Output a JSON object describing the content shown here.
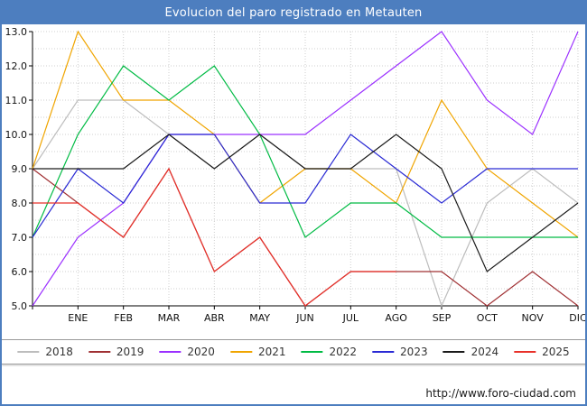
{
  "window": {
    "title": "Evolucion del paro registrado en Metauten"
  },
  "footer": {
    "link": "http://www.foro-ciudad.com"
  },
  "colors": {
    "titlebar": "#4d7ebf",
    "frame_border": "#4d7ebf",
    "grid": "#cfcfcf",
    "axis": "#000000",
    "tick_label": "#111111"
  },
  "chart_data": {
    "type": "line",
    "title": "Evolucion del paro registrado en Metauten",
    "xlabel": "",
    "ylabel": "",
    "ylim": [
      5,
      13
    ],
    "ytick_step": 1,
    "ytick_minor_step": 0.5,
    "grid": true,
    "legend_position": "bottom",
    "categories": [
      "",
      "ENE",
      "FEB",
      "MAR",
      "ABR",
      "MAY",
      "JUN",
      "JUL",
      "AGO",
      "SEP",
      "OCT",
      "NOV",
      "DIC"
    ],
    "series": [
      {
        "name": "2018",
        "color": "#bdbdbd",
        "values": [
          9,
          11,
          11,
          10,
          9,
          10,
          9,
          9,
          9,
          5,
          8,
          9,
          8
        ]
      },
      {
        "name": "2019",
        "color": "#a03033",
        "values": [
          9,
          8,
          7,
          9,
          6,
          7,
          5,
          6,
          6,
          6,
          5,
          6,
          5
        ]
      },
      {
        "name": "2020",
        "color": "#9b30ff",
        "values": [
          5,
          7,
          8,
          10,
          10,
          10,
          10,
          11,
          12,
          13,
          11,
          10,
          13
        ]
      },
      {
        "name": "2021",
        "color": "#f0a500",
        "values": [
          9,
          13,
          11,
          11,
          10,
          8,
          9,
          9,
          8,
          11,
          9,
          8,
          7
        ]
      },
      {
        "name": "2022",
        "color": "#00bb44",
        "values": [
          7,
          10,
          12,
          11,
          12,
          10,
          7,
          8,
          8,
          7,
          7,
          7,
          7
        ]
      },
      {
        "name": "2023",
        "color": "#2a2ad4",
        "values": [
          7,
          9,
          8,
          10,
          10,
          8,
          8,
          10,
          9,
          8,
          9,
          9,
          9
        ]
      },
      {
        "name": "2024",
        "color": "#1a1a1a",
        "values": [
          9,
          9,
          9,
          10,
          9,
          10,
          9,
          9,
          10,
          9,
          6,
          7,
          8
        ]
      },
      {
        "name": "2025",
        "color": "#e8312a",
        "values": [
          8,
          8,
          7,
          9,
          6,
          7,
          5,
          6,
          6
        ]
      }
    ]
  }
}
